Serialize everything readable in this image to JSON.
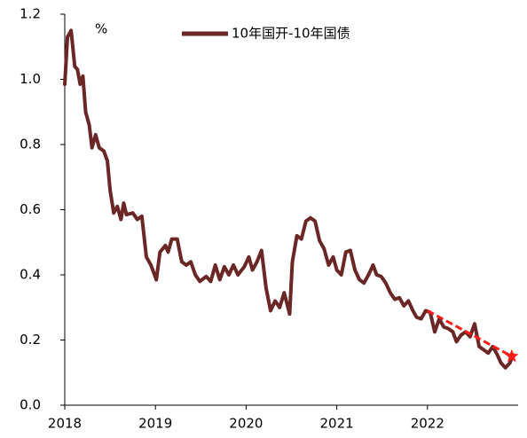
{
  "chart_data": {
    "type": "line",
    "unit_label": "%",
    "xlim": [
      2018,
      2023
    ],
    "xticks": [
      2018,
      2019,
      2020,
      2021,
      2022
    ],
    "ylim": [
      0,
      1.2
    ],
    "yticks": [
      {
        "value": 0,
        "label": "0.0"
      },
      0.2,
      0.4,
      0.6,
      0.8,
      {
        "value": 1,
        "label": "1.0"
      },
      1.2
    ],
    "grid": false,
    "legend": "top",
    "series": [
      {
        "name": "10年国开-10年国债",
        "color": "#6b2626",
        "x": [
          2018.0,
          2018.03,
          2018.07,
          2018.11,
          2018.14,
          2018.17,
          2018.2,
          2018.23,
          2018.27,
          2018.3,
          2018.34,
          2018.38,
          2018.43,
          2018.47,
          2018.5,
          2018.54,
          2018.58,
          2018.62,
          2018.65,
          2018.68,
          2018.75,
          2018.8,
          2018.85,
          2018.9,
          2018.95,
          2019.01,
          2019.05,
          2019.11,
          2019.14,
          2019.18,
          2019.24,
          2019.29,
          2019.34,
          2019.39,
          2019.44,
          2019.49,
          2019.56,
          2019.61,
          2019.66,
          2019.71,
          2019.76,
          2019.81,
          2019.86,
          2019.91,
          2019.98,
          2020.03,
          2020.07,
          2020.12,
          2020.17,
          2020.22,
          2020.27,
          2020.32,
          2020.37,
          2020.42,
          2020.48,
          2020.51,
          2020.56,
          2020.61,
          2020.66,
          2020.71,
          2020.76,
          2020.81,
          2020.86,
          2020.91,
          2020.96,
          2021.0,
          2021.05,
          2021.1,
          2021.15,
          2021.2,
          2021.25,
          2021.3,
          2021.35,
          2021.4,
          2021.44,
          2021.49,
          2021.54,
          2021.59,
          2021.64,
          2021.69,
          2021.74,
          2021.79,
          2021.84,
          2021.88,
          2021.93,
          2021.98,
          2022.03,
          2022.08,
          2022.13,
          2022.18,
          2022.23,
          2022.28,
          2022.32,
          2022.37,
          2022.42,
          2022.47,
          2022.52,
          2022.57,
          2022.62,
          2022.67,
          2022.72,
          2022.77,
          2022.81,
          2022.86,
          2022.91,
          2022.94
        ],
        "values": [
          0.985,
          1.13,
          1.15,
          1.04,
          1.03,
          0.985,
          1.01,
          0.9,
          0.86,
          0.79,
          0.83,
          0.79,
          0.78,
          0.75,
          0.66,
          0.59,
          0.61,
          0.57,
          0.62,
          0.585,
          0.59,
          0.57,
          0.58,
          0.455,
          0.43,
          0.385,
          0.47,
          0.49,
          0.47,
          0.51,
          0.51,
          0.44,
          0.43,
          0.44,
          0.4,
          0.38,
          0.395,
          0.38,
          0.43,
          0.385,
          0.425,
          0.4,
          0.43,
          0.4,
          0.425,
          0.455,
          0.415,
          0.44,
          0.475,
          0.36,
          0.29,
          0.32,
          0.3,
          0.345,
          0.28,
          0.44,
          0.52,
          0.51,
          0.565,
          0.575,
          0.565,
          0.505,
          0.48,
          0.43,
          0.455,
          0.415,
          0.4,
          0.47,
          0.475,
          0.415,
          0.385,
          0.375,
          0.4,
          0.43,
          0.4,
          0.395,
          0.375,
          0.345,
          0.325,
          0.33,
          0.305,
          0.32,
          0.29,
          0.27,
          0.265,
          0.29,
          0.285,
          0.225,
          0.265,
          0.24,
          0.235,
          0.225,
          0.195,
          0.215,
          0.225,
          0.21,
          0.25,
          0.18,
          0.17,
          0.16,
          0.18,
          0.155,
          0.13,
          0.115,
          0.13,
          0.155
        ]
      }
    ],
    "trend": {
      "x": [
        2022.0,
        2022.93
      ],
      "values": [
        0.29,
        0.15
      ],
      "color": "#ff1a1a"
    }
  }
}
